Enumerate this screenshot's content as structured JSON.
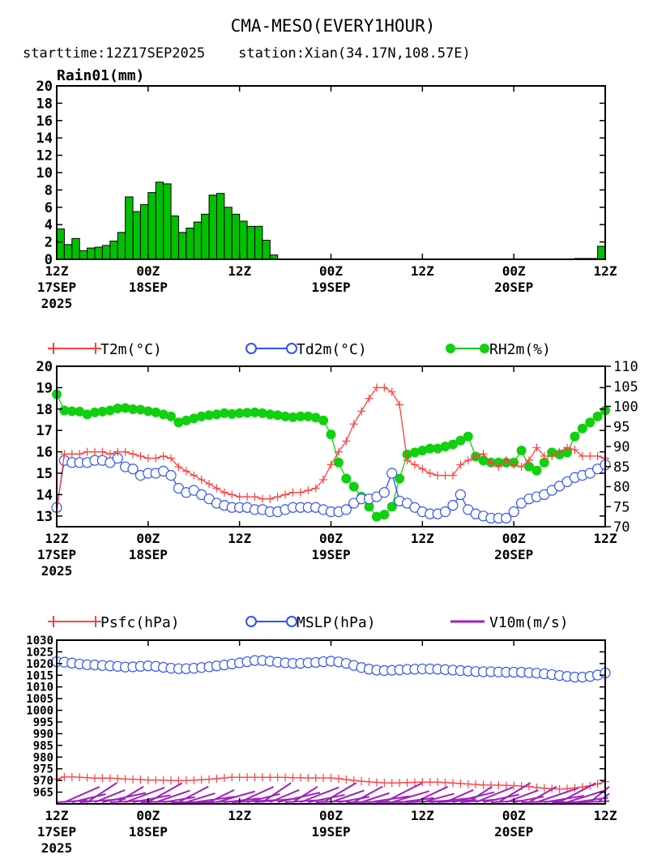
{
  "title": "CMA-MESO(EVERY1HOUR)",
  "subtitle": "starttime:12Z17SEP2025    station:Xian(34.17N,108.57E)",
  "x_axis": {
    "ticks": [
      {
        "hour": 0,
        "lines": [
          "12Z",
          "17SEP",
          "2025"
        ]
      },
      {
        "hour": 12,
        "lines": [
          "00Z",
          "18SEP"
        ]
      },
      {
        "hour": 24,
        "lines": [
          "12Z"
        ]
      },
      {
        "hour": 36,
        "lines": [
          "00Z",
          "19SEP"
        ]
      },
      {
        "hour": 48,
        "lines": [
          "12Z"
        ]
      },
      {
        "hour": 60,
        "lines": [
          "00Z",
          "20SEP"
        ]
      },
      {
        "hour": 72,
        "lines": [
          "12Z"
        ]
      }
    ]
  },
  "chart_data": [
    {
      "type": "bar",
      "ylabel": "Rain01(mm)",
      "ylim": [
        0,
        20
      ],
      "yticks": [
        0,
        2,
        4,
        6,
        8,
        10,
        12,
        14,
        16,
        18,
        20
      ],
      "xlim": [
        0,
        72
      ],
      "bar_color": "#00c000",
      "values": [
        3.5,
        1.7,
        2.4,
        1.0,
        1.3,
        1.4,
        1.6,
        2.1,
        3.1,
        7.2,
        5.5,
        6.3,
        7.7,
        8.9,
        8.7,
        5.0,
        3.1,
        3.6,
        4.3,
        5.2,
        7.4,
        7.6,
        6.0,
        5.2,
        4.4,
        3.8,
        3.8,
        2.2,
        0.5,
        0,
        0,
        0,
        0,
        0,
        0,
        0,
        0,
        0,
        0,
        0,
        0,
        0,
        0,
        0,
        0,
        0,
        0,
        0,
        0,
        0,
        0,
        0,
        0,
        0,
        0,
        0,
        0,
        0,
        0,
        0,
        0,
        0,
        0,
        0,
        0,
        0,
        0,
        0.05,
        0.1,
        0.1,
        0.1,
        1.5
      ]
    },
    {
      "type": "line",
      "xlim": [
        0,
        72
      ],
      "y_left": {
        "ylim": [
          12.5,
          20
        ],
        "ticks": [
          13,
          14,
          15,
          16,
          17,
          18,
          19,
          20
        ]
      },
      "y_right": {
        "ylim": [
          70,
          110
        ],
        "ticks": [
          70,
          75,
          80,
          85,
          90,
          95,
          100,
          105,
          110
        ]
      },
      "series": [
        {
          "name": "T2m(°C)",
          "axis": "left",
          "color": "#ff4040",
          "marker": "plus",
          "values": [
            13.2,
            15.9,
            15.9,
            15.9,
            16.0,
            16.0,
            16.0,
            15.9,
            16.0,
            16.0,
            15.9,
            15.8,
            15.7,
            15.7,
            15.8,
            15.7,
            15.3,
            15.1,
            14.9,
            14.7,
            14.5,
            14.3,
            14.1,
            14.0,
            13.9,
            13.9,
            13.9,
            13.8,
            13.8,
            13.9,
            14.0,
            14.1,
            14.1,
            14.2,
            14.3,
            14.7,
            15.4,
            16.0,
            16.5,
            17.3,
            17.9,
            18.5,
            19.0,
            19.0,
            18.8,
            18.2,
            15.6,
            15.4,
            15.2,
            15.0,
            14.9,
            14.9,
            14.9,
            15.4,
            15.6,
            15.8,
            15.9,
            15.5,
            15.3,
            15.6,
            15.4,
            15.3,
            15.6,
            16.2,
            15.8,
            15.8,
            16.0,
            16.2,
            16.1,
            15.8,
            15.8,
            15.8,
            15.7
          ]
        },
        {
          "name": "Td2m(°C)",
          "axis": "left",
          "color": "#3050ff",
          "marker": "circle",
          "values": [
            13.4,
            15.6,
            15.5,
            15.5,
            15.5,
            15.6,
            15.6,
            15.5,
            15.7,
            15.3,
            15.2,
            14.9,
            15.0,
            15.0,
            15.1,
            14.9,
            14.3,
            14.1,
            14.2,
            14.0,
            13.8,
            13.6,
            13.5,
            13.4,
            13.4,
            13.4,
            13.3,
            13.3,
            13.2,
            13.2,
            13.3,
            13.4,
            13.4,
            13.4,
            13.4,
            13.3,
            13.2,
            13.2,
            13.3,
            13.6,
            13.8,
            13.8,
            13.9,
            14.1,
            15.0,
            13.7,
            13.6,
            13.4,
            13.2,
            13.1,
            13.1,
            13.2,
            13.5,
            14.0,
            13.3,
            13.1,
            13.0,
            12.9,
            12.9,
            12.9,
            13.2,
            13.6,
            13.8,
            13.9,
            14.0,
            14.2,
            14.4,
            14.6,
            14.8,
            14.9,
            15.0,
            15.2,
            15.4
          ]
        },
        {
          "name": "RH2m(%)",
          "axis": "right",
          "color": "#10d010",
          "marker": "dot",
          "values": [
            103,
            99,
            98.8,
            98.7,
            98,
            98.5,
            98.7,
            99,
            99.5,
            99.6,
            99.3,
            99.2,
            98.8,
            98.5,
            98,
            97.5,
            96,
            96.5,
            97,
            97.5,
            97.8,
            98,
            98.3,
            98.1,
            98.3,
            98.4,
            98.5,
            98.3,
            98,
            97.8,
            97.5,
            97.3,
            97.5,
            97.5,
            97.2,
            96.5,
            93,
            86,
            82,
            80,
            77.5,
            75,
            72.5,
            73,
            75,
            82,
            88,
            88.5,
            89,
            89.5,
            89.5,
            90,
            90.5,
            91.5,
            92.5,
            87.5,
            86.5,
            86,
            86,
            86,
            86,
            89,
            85,
            84,
            86,
            88.5,
            88,
            88.5,
            92.5,
            94.5,
            96,
            97.5,
            99
          ]
        }
      ]
    },
    {
      "type": "line",
      "xlim": [
        0,
        72
      ],
      "y_left": {
        "ylim": [
          960,
          1030
        ],
        "ticks": [
          965,
          970,
          975,
          980,
          985,
          990,
          995,
          1000,
          1005,
          1010,
          1015,
          1020,
          1025,
          1030
        ]
      },
      "series": [
        {
          "name": "Psfc(hPa)",
          "color": "#ff4040",
          "marker": "plus",
          "values": [
            970.5,
            971.5,
            971.5,
            971.4,
            971.2,
            971.0,
            971.0,
            971.0,
            970.8,
            970.6,
            970.5,
            970.4,
            970.2,
            970.2,
            970.1,
            970.0,
            969.9,
            970.0,
            970.1,
            970.3,
            970.5,
            970.8,
            971.1,
            971.4,
            971.4,
            971.4,
            971.4,
            971.4,
            971.3,
            971.3,
            971.3,
            971.2,
            971.2,
            971.1,
            971.1,
            971.1,
            971.1,
            970.8,
            970.4,
            970.0,
            969.7,
            969.4,
            969.2,
            969.0,
            968.9,
            969.0,
            969.1,
            969.2,
            969.3,
            969.3,
            969.3,
            969.1,
            968.9,
            968.7,
            968.5,
            968.3,
            968.1,
            968.0,
            968.0,
            967.9,
            967.8,
            967.6,
            967.4,
            967.0,
            966.7,
            966.5,
            966.3,
            966.5,
            966.8,
            967.2,
            967.7,
            968.5,
            969.5
          ]
        },
        {
          "name": "MSLP(hPa)",
          "color": "#3050ff",
          "marker": "circle",
          "values": [
            1020.8,
            1020.6,
            1020.2,
            1019.8,
            1019.5,
            1019.4,
            1019.2,
            1019.0,
            1018.8,
            1018.5,
            1018.6,
            1018.8,
            1019.0,
            1018.8,
            1018.4,
            1018.0,
            1017.8,
            1017.8,
            1018.0,
            1018.3,
            1018.6,
            1019.0,
            1019.4,
            1019.8,
            1020.3,
            1020.8,
            1021.3,
            1021.3,
            1021.0,
            1020.6,
            1020.3,
            1020.1,
            1020.1,
            1020.3,
            1020.5,
            1020.8,
            1021.0,
            1020.7,
            1020.1,
            1019.2,
            1018.3,
            1017.6,
            1017.2,
            1017.0,
            1017.1,
            1017.3,
            1017.5,
            1017.6,
            1017.7,
            1017.7,
            1017.6,
            1017.4,
            1017.2,
            1017.0,
            1016.8,
            1016.6,
            1016.5,
            1016.5,
            1016.4,
            1016.3,
            1016.3,
            1016.3,
            1016.1,
            1015.9,
            1015.6,
            1015.3,
            1014.9,
            1014.5,
            1014.2,
            1014.2,
            1014.5,
            1015.1,
            1016.0
          ]
        },
        {
          "name": "V10m(m/s)",
          "color": "#a020c0",
          "marker": "barb",
          "values": []
        }
      ]
    }
  ]
}
